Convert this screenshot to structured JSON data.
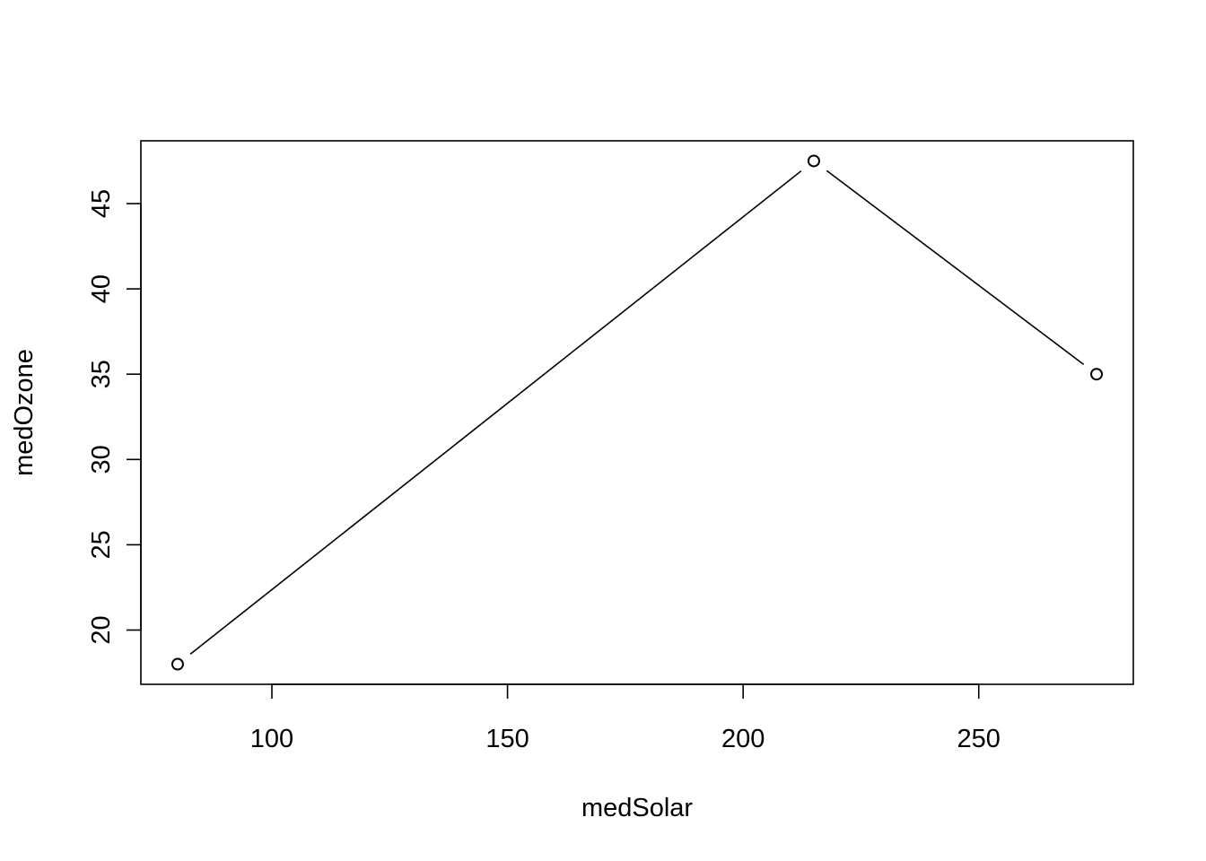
{
  "chart_data": {
    "type": "line",
    "title": "",
    "xlabel": "medSolar",
    "ylabel": "medOzone",
    "x": [
      80,
      215,
      275
    ],
    "series": [
      {
        "values": [
          18,
          47.5,
          35
        ]
      }
    ],
    "markers": "open-circle",
    "line_color": "#000000",
    "xlim": [
      72.2,
      282.8
    ],
    "ylim": [
      16.82,
      48.68
    ],
    "x_ticks": [
      100,
      150,
      200,
      250
    ],
    "x_tick_labels": [
      "100",
      "150",
      "200",
      "250"
    ],
    "y_ticks": [
      20,
      25,
      30,
      35,
      40,
      45
    ],
    "y_tick_labels": [
      "20",
      "25",
      "30",
      "35",
      "40",
      "45"
    ],
    "grid": false,
    "legend": "none",
    "box": true
  }
}
